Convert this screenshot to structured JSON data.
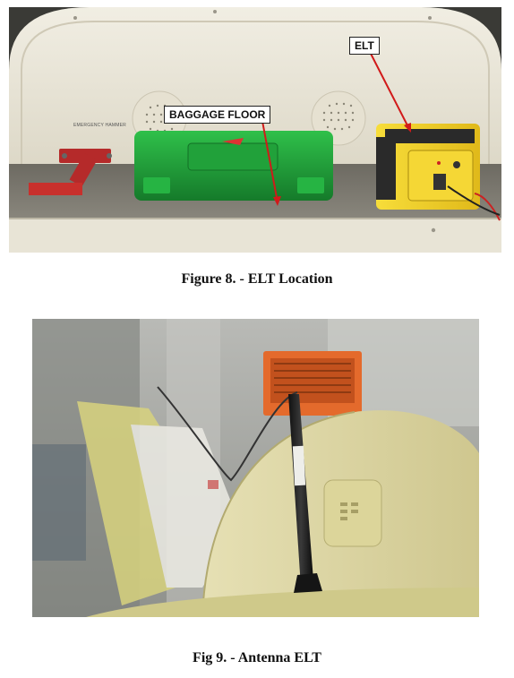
{
  "figure1": {
    "caption": "Figure 8. - ELT Location",
    "callouts": {
      "baggage_floor": "BAGGAGE FLOOR",
      "elt": "ELT"
    },
    "placard": "EMERGENCY HAMMER"
  },
  "figure2": {
    "caption": "Fig 9. - Antenna ELT"
  },
  "colors": {
    "arrow": "#d11a1a",
    "case_green": "#1fa83a",
    "elt_yellow": "#f2d22a",
    "panel_beige": "#ece7d6",
    "tail_yellow": "#d8d37e"
  }
}
